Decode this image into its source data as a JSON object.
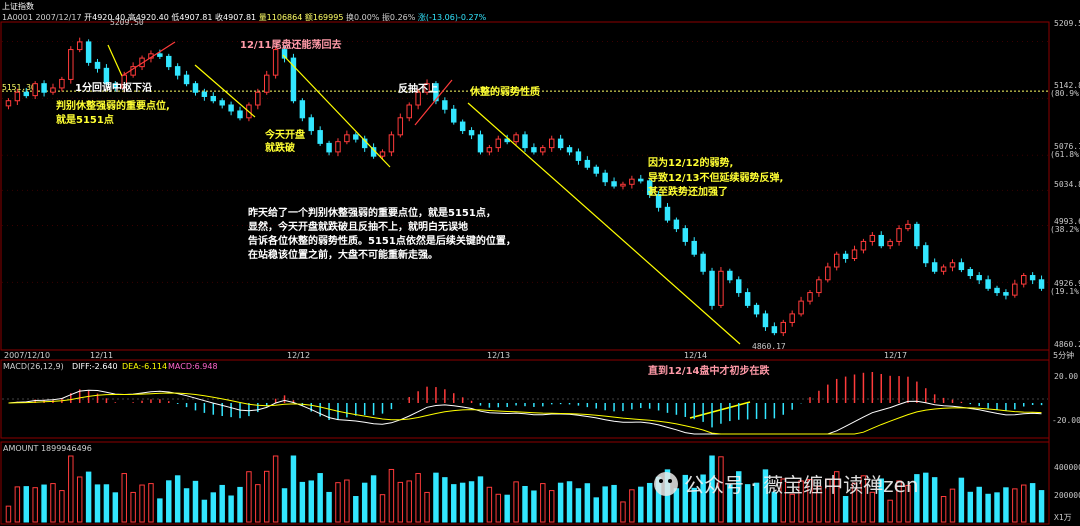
{
  "window": {
    "title": "上证指数"
  },
  "header": {
    "code": "1A0001",
    "date": "2007/12/17",
    "open": "开4920.40",
    "high": "高4920.40",
    "low": "低4907.81",
    "close": "收4907.81",
    "volume": "量1106864",
    "amount": "额169995",
    "turnover": "换0.00%",
    "amplitude": "振0.26%",
    "change": "涨(-13.06)-0.27%"
  },
  "colors": {
    "up": "#ff3b3b",
    "down": "#33e6ff",
    "line": "#ffff00",
    "dif": "#ffffff",
    "dea": "#ffff00",
    "grid": "#8b0000"
  },
  "price_axis": {
    "ticks": [
      "5209.5",
      "5142.8",
      "5076.1",
      "5034.8",
      "4993.6",
      "4926.9",
      "4860.2"
    ],
    "pcts": [
      "(80.9%)",
      "(61.8%)",
      "(38.2%)",
      "(19.1%)"
    ],
    "ref_label": "5151.30",
    "high_label": "5209.50",
    "low_label": "4860.17"
  },
  "time_axis": {
    "labels": [
      "2007/12/10",
      "12/11",
      "12/12",
      "12/13",
      "12/14",
      "12/17"
    ],
    "period": "5分钟"
  },
  "macd_panel": {
    "title": "MACD(26,12,9)",
    "dif": "DIFF:-2.640",
    "dea": "DEA:-6.114",
    "macd": "MACD:6.948",
    "ticks": [
      "20.00",
      "-20.00"
    ]
  },
  "amount_panel": {
    "title": "AMOUNT 1899946496",
    "ticks": [
      "400000",
      "200000"
    ],
    "unit": "X1万"
  },
  "annotations": {
    "a1": "1分回调中枢下沿",
    "a2_l1": "判别休整强弱的重要点位,",
    "a2_l2": "就是5151点",
    "a3": "12/11尾盘还能荡回去",
    "a4_l1": "今天开盘",
    "a4_l2": "就跌破",
    "a5": "反抽不上",
    "a6": "休整的弱势性质",
    "a7_l1": "因为12/12的弱势,",
    "a7_l2": "导致12/13不但延续弱势反弹,",
    "a7_l3": "甚至跌势还加强了",
    "a8_l1": "昨天给了一个判别休整强弱的重要点位，就是5151点，",
    "a8_l2": "显然，今天开盘就跌破且反抽不上，就明白无误地",
    "a8_l3": "告诉各位休整的弱势性质。5151点依然是后续关键的位置，",
    "a8_l4": "在站稳该位置之前，大盘不可能重新走强。",
    "a9": "直到12/14盘中才初步在跌"
  },
  "watermark": {
    "text": "公众号 · 薇宝缠中读禅zen"
  },
  "chart_data": {
    "type": "candlestick",
    "title": "上证指数",
    "period": "5分钟",
    "ylim": [
      4850,
      5230
    ],
    "key_levels": {
      "ref": 5151.3,
      "high": 5209.5,
      "low": 4860.17
    },
    "segments": [
      {
        "label": "12/10",
        "points": [
          5140,
          5150,
          5146,
          5160,
          5150,
          5155
        ]
      },
      {
        "label": "12/11",
        "points": [
          5165,
          5200,
          5209,
          5185,
          5178,
          5160,
          5155,
          5170,
          5180,
          5190,
          5195,
          5192,
          5180,
          5170,
          5160,
          5150,
          5145,
          5140,
          5135,
          5128,
          5120,
          5135,
          5150,
          5170,
          5200,
          5190
        ]
      },
      {
        "label": "12/12",
        "points": [
          5140,
          5120,
          5105,
          5090,
          5080,
          5092,
          5100,
          5095,
          5085,
          5075,
          5080,
          5100,
          5120,
          5135,
          5150,
          5160,
          5140,
          5130,
          5115,
          5105,
          5100,
          5080,
          5085,
          5095,
          5092,
          5100,
          5085
        ]
      },
      {
        "label": "12/13",
        "points": [
          5080,
          5085,
          5095,
          5085,
          5080,
          5070,
          5062,
          5055,
          5045,
          5040,
          5042,
          5048,
          5046,
          5030,
          5015,
          5000,
          4990,
          4975,
          4960,
          4940
        ]
      },
      {
        "label": "12/14",
        "points": [
          4900,
          4940,
          4930,
          4915,
          4900,
          4890,
          4875,
          4868,
          4880,
          4890,
          4905,
          4915,
          4930,
          4945,
          4960,
          4955,
          4965,
          4975,
          4982,
          4970,
          4975,
          4990
        ]
      },
      {
        "label": "12/17",
        "points": [
          4995,
          4970,
          4950,
          4940,
          4945,
          4950,
          4942,
          4935,
          4930,
          4920,
          4915,
          4912,
          4925,
          4935,
          4930,
          4920
        ]
      }
    ],
    "macd": {
      "dif": -2.64,
      "dea": -6.114,
      "macd": 6.948,
      "ylim": [
        -30,
        30
      ]
    },
    "amount_ylim": [
      0,
      500000
    ]
  }
}
